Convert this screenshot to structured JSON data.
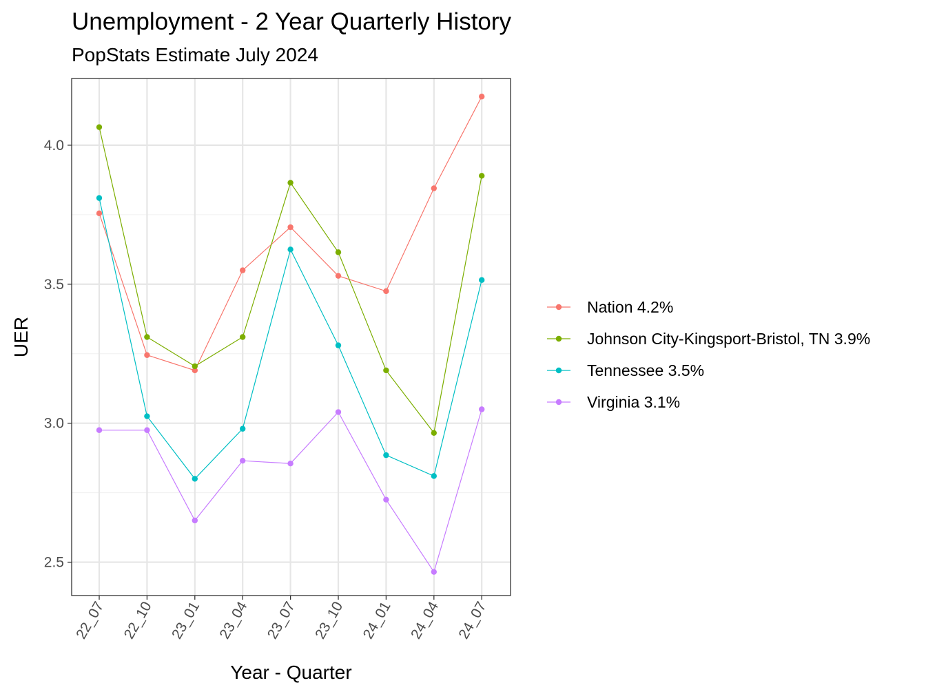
{
  "chart_data": {
    "type": "line",
    "title": "Unemployment - 2 Year Quarterly History",
    "subtitle": "PopStats Estimate July 2024",
    "xlabel": "Year - Quarter",
    "ylabel": "UER",
    "categories": [
      "22_07",
      "22_10",
      "23_01",
      "23_04",
      "23_07",
      "23_10",
      "24_01",
      "24_04",
      "24_07"
    ],
    "ylim": [
      2.38,
      4.24
    ],
    "yticks": [
      2.5,
      3.0,
      3.5,
      4.0
    ],
    "ytick_labels": [
      "2.5",
      "3.0",
      "3.5",
      "4.0"
    ],
    "grid": true,
    "legend_position": "right",
    "series": [
      {
        "name": "Nation 4.2%",
        "color": "#F8766D",
        "values": [
          3.755,
          3.245,
          3.19,
          3.55,
          3.705,
          3.53,
          3.475,
          3.845,
          4.175
        ]
      },
      {
        "name": "Johnson City-Kingsport-Bristol, TN 3.9%",
        "color": "#7CAE00",
        "values": [
          4.065,
          3.31,
          3.205,
          3.31,
          3.865,
          3.615,
          3.19,
          2.965,
          3.89
        ]
      },
      {
        "name": "Tennessee 3.5%",
        "color": "#00BFC4",
        "values": [
          3.81,
          3.025,
          2.8,
          2.98,
          3.625,
          3.28,
          2.885,
          2.81,
          3.515
        ]
      },
      {
        "name": "Virginia 3.1%",
        "color": "#C77CFF",
        "values": [
          2.975,
          2.975,
          2.65,
          2.865,
          2.855,
          3.04,
          2.725,
          2.465,
          3.05
        ]
      }
    ]
  }
}
